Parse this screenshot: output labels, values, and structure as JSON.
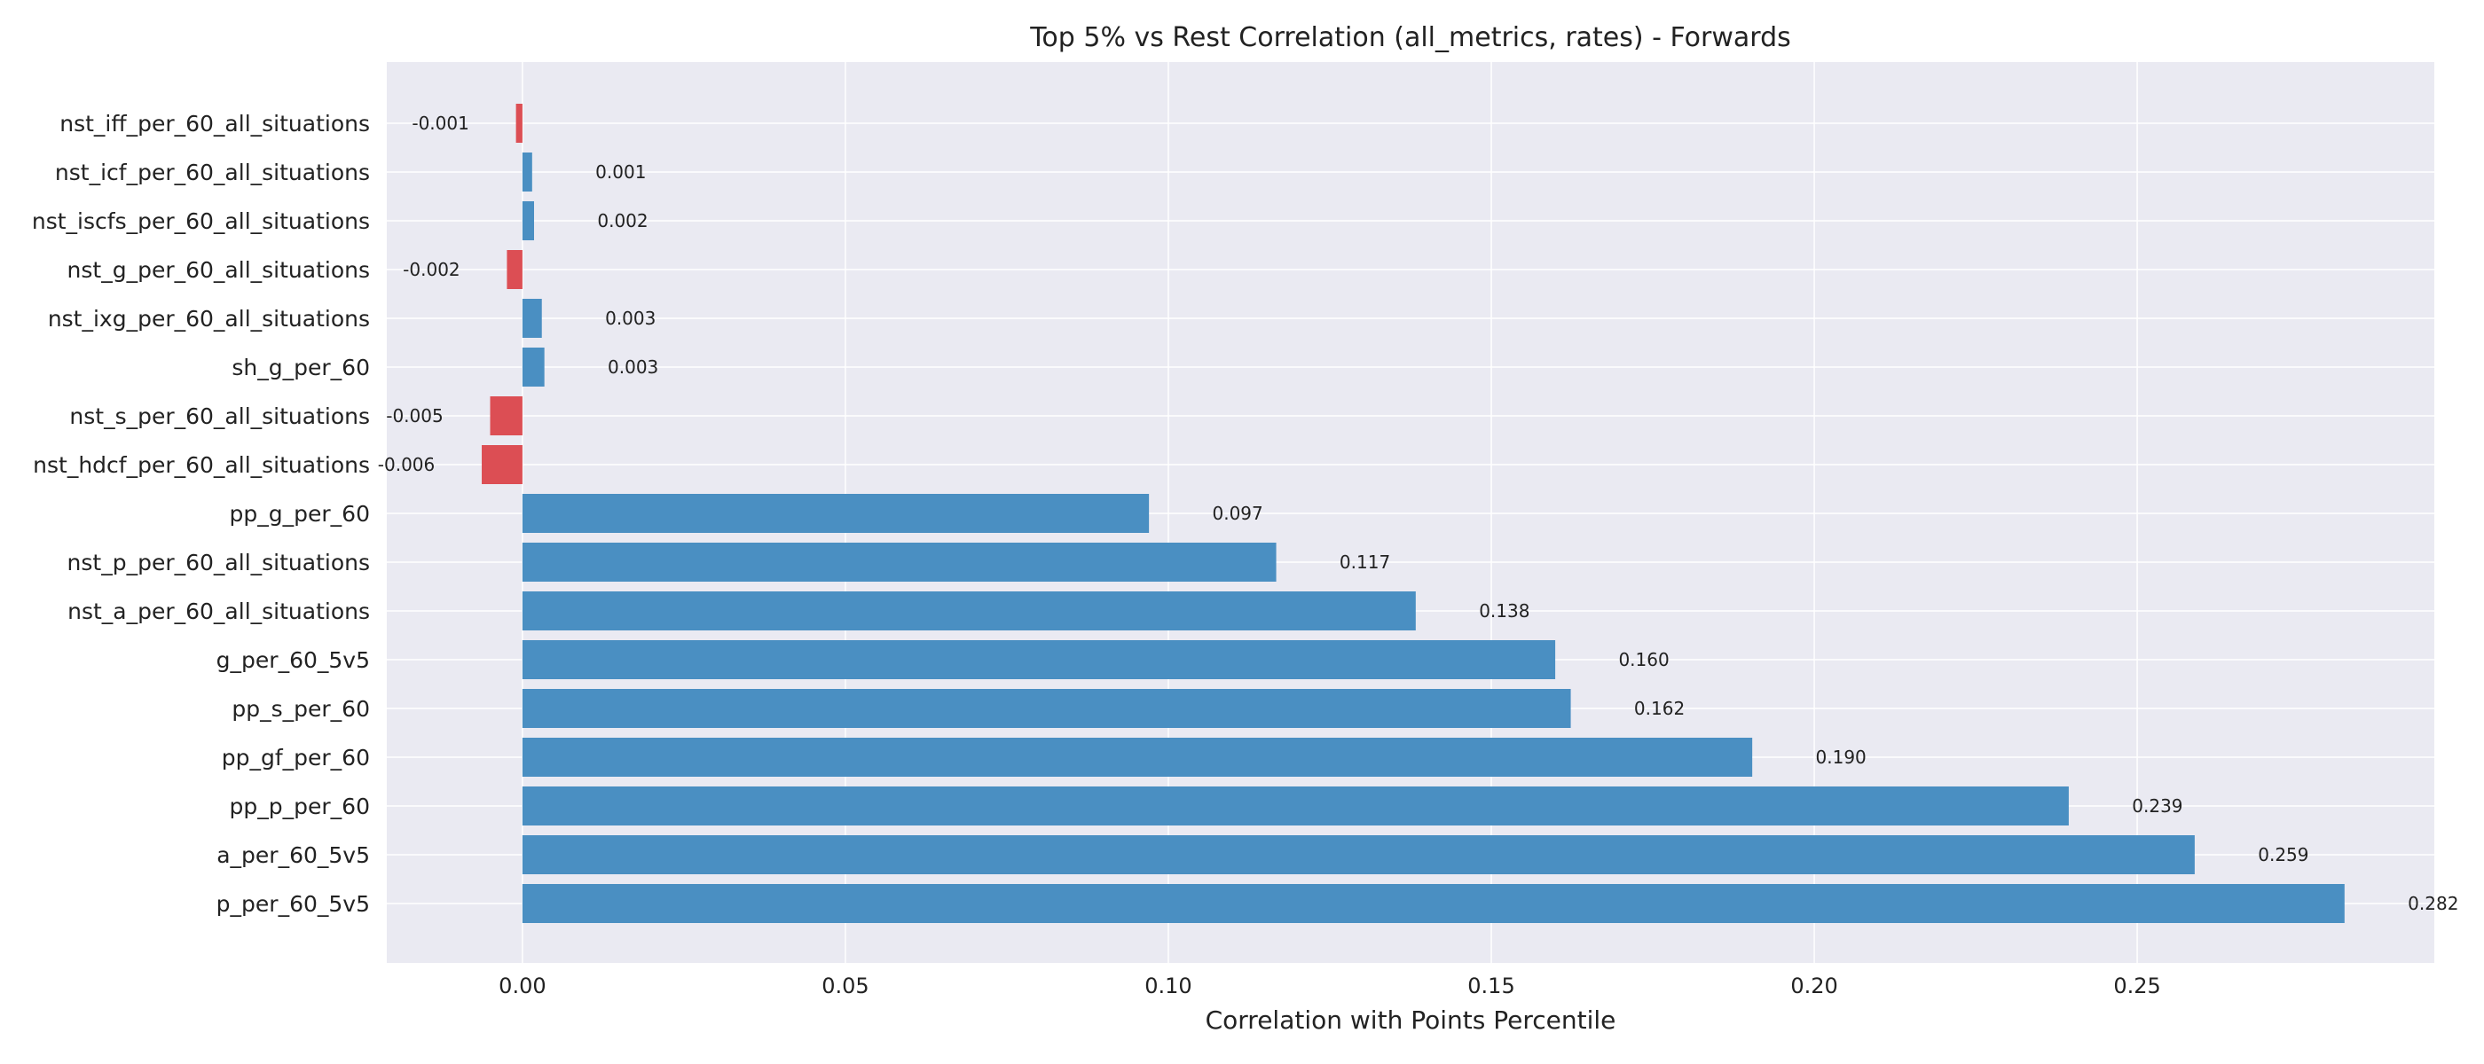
{
  "chart_data": {
    "type": "bar",
    "orientation": "horizontal",
    "title": "Top 5% vs Rest Correlation (all_metrics, rates) - Forwards",
    "xlabel": "Correlation with Points Percentile",
    "ylabel": "",
    "xlim": [
      -0.021,
      0.296
    ],
    "x_ticks": [
      0.0,
      0.05,
      0.1,
      0.15,
      0.2,
      0.25
    ],
    "x_tick_labels": [
      "0.00",
      "0.05",
      "0.10",
      "0.15",
      "0.20",
      "0.25"
    ],
    "grid": true,
    "colors": {
      "positive": "#4a8fc2",
      "negative": "#dc4e54",
      "plot_bg": "#eaeaf2",
      "grid": "#ffffff"
    },
    "categories": [
      "nst_iff_per_60_all_situations",
      "nst_icf_per_60_all_situations",
      "nst_iscfs_per_60_all_situations",
      "nst_g_per_60_all_situations",
      "nst_ixg_per_60_all_situations",
      "sh_g_per_60",
      "nst_s_per_60_all_situations",
      "nst_hdcf_per_60_all_situations",
      "pp_g_per_60",
      "nst_p_per_60_all_situations",
      "nst_a_per_60_all_situations",
      "g_per_60_5v5",
      "pp_s_per_60",
      "pp_gf_per_60",
      "pp_p_per_60",
      "a_per_60_5v5",
      "p_per_60_5v5"
    ],
    "values": [
      -0.001,
      0.0015,
      0.0018,
      -0.0024,
      0.003,
      0.0034,
      -0.005,
      -0.0063,
      0.097,
      0.1167,
      0.1383,
      0.1599,
      0.1623,
      0.1904,
      0.2394,
      0.2589,
      0.2821
    ],
    "value_labels": [
      "-0.001",
      "0.001",
      "0.002",
      "-0.002",
      "0.003",
      "0.003",
      "-0.005",
      "-0.006",
      "0.097",
      "0.117",
      "0.138",
      "0.160",
      "0.162",
      "0.190",
      "0.239",
      "0.259",
      "0.282"
    ]
  }
}
